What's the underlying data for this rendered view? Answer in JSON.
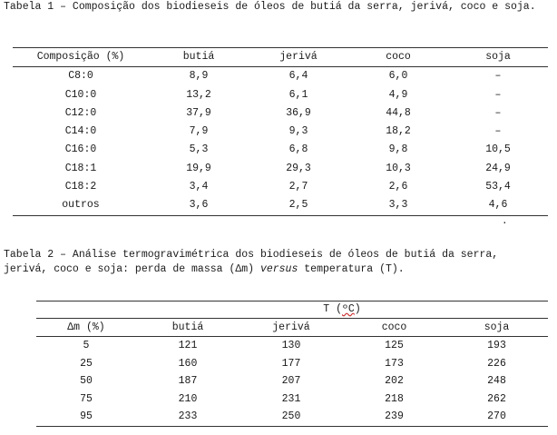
{
  "table1": {
    "caption": "Tabela 1 – Composição dos biodieseis de óleos de butiá da serra, jerivá, coco e soja.",
    "headers": [
      "Composição (%)",
      "butiá",
      "jerivá",
      "coco",
      "soja"
    ],
    "rows": [
      [
        "C8:0",
        "8,9",
        "6,4",
        "6,0",
        "–"
      ],
      [
        "C10:0",
        "13,2",
        "6,1",
        "4,9",
        "–"
      ],
      [
        "C12:0",
        "37,9",
        "36,9",
        "44,8",
        "–"
      ],
      [
        "C14:0",
        "7,9",
        "9,3",
        "18,2",
        "–"
      ],
      [
        "C16:0",
        "5,3",
        "6,8",
        "9,8",
        "10,5"
      ],
      [
        "C18:1",
        "19,9",
        "29,3",
        "10,3",
        "24,9"
      ],
      [
        "C18:2",
        "3,4",
        "2,7",
        "2,6",
        "53,4"
      ],
      [
        "outros",
        "3,6",
        "2,5",
        "3,3",
        "4,6"
      ]
    ],
    "trailing_mark": "."
  },
  "table2": {
    "caption_part1": "Tabela 2 – Análise termogravimétrica dos biodieseis de óleos de butiá da serra, jerivá, coco e soja: perda de massa (∆m) ",
    "caption_italic": "versus",
    "caption_part2": " temperatura (T).",
    "top_header_prefix": "T (",
    "top_header_unit": "ºC",
    "top_header_suffix": ")",
    "headers": [
      "∆m (%)",
      "butiá",
      "jerivá",
      "coco",
      "soja"
    ],
    "rows": [
      [
        "5",
        "121",
        "130",
        "125",
        "193"
      ],
      [
        "25",
        "160",
        "177",
        "173",
        "226"
      ],
      [
        "50",
        "187",
        "207",
        "202",
        "248"
      ],
      [
        "75",
        "210",
        "231",
        "218",
        "262"
      ],
      [
        "95",
        "233",
        "250",
        "239",
        "270"
      ]
    ]
  }
}
